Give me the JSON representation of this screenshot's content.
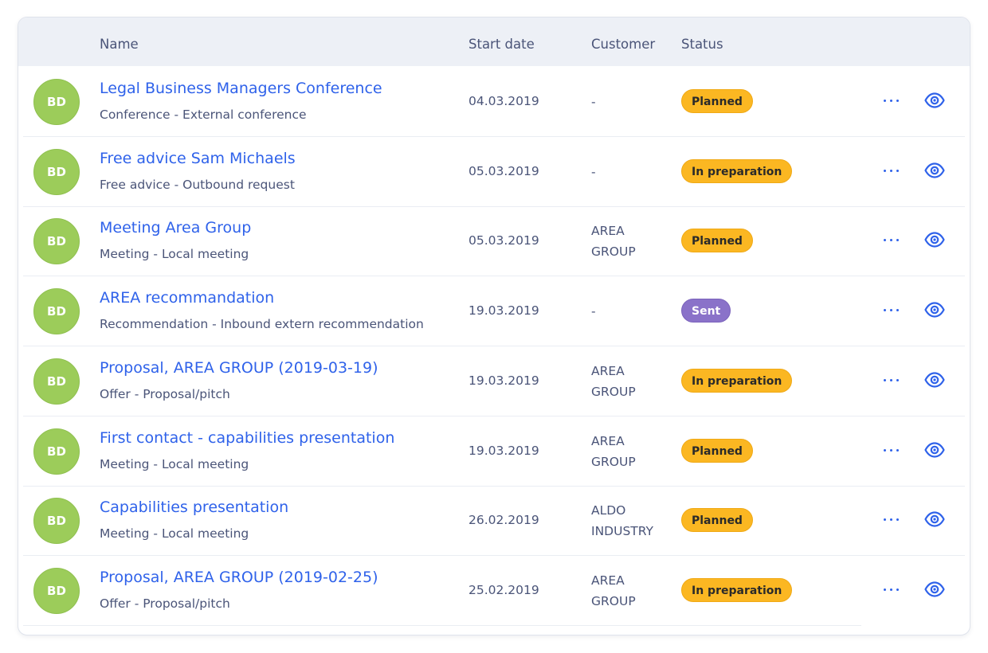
{
  "columns": {
    "name": "Name",
    "start_date": "Start date",
    "customer": "Customer",
    "status": "Status"
  },
  "colors": {
    "link": "#2f62ea",
    "avatar": "#9ccc5a",
    "planned": "#fbb722",
    "in_preparation": "#fbb722",
    "sent": "#8a72c9"
  },
  "icons": {
    "more": "more-dots-icon",
    "view": "eye-icon"
  },
  "rows": [
    {
      "avatar": "BD",
      "title": "Legal Business Managers Conference",
      "subtitle": "Conference - External conference",
      "date": "04.03.2019",
      "customer_line1": "-",
      "customer_line2": "",
      "status": "Planned"
    },
    {
      "avatar": "BD",
      "title": "Free advice Sam Michaels",
      "subtitle": "Free advice - Outbound request",
      "date": "05.03.2019",
      "customer_line1": "-",
      "customer_line2": "",
      "status": "In preparation"
    },
    {
      "avatar": "BD",
      "title": "Meeting Area Group",
      "subtitle": "Meeting - Local meeting",
      "date": "05.03.2019",
      "customer_line1": "AREA",
      "customer_line2": "GROUP",
      "status": "Planned"
    },
    {
      "avatar": "BD",
      "title": "AREA recommandation",
      "subtitle": "Recommendation - Inbound extern recommendation",
      "date": "19.03.2019",
      "customer_line1": "-",
      "customer_line2": "",
      "status": "Sent"
    },
    {
      "avatar": "BD",
      "title": "Proposal, AREA GROUP (2019-03-19)",
      "subtitle": "Offer - Proposal/pitch",
      "date": "19.03.2019",
      "customer_line1": "AREA",
      "customer_line2": "GROUP",
      "status": "In preparation"
    },
    {
      "avatar": "BD",
      "title": "First contact - capabilities presentation",
      "subtitle": "Meeting - Local meeting",
      "date": "19.03.2019",
      "customer_line1": "AREA",
      "customer_line2": "GROUP",
      "status": "Planned"
    },
    {
      "avatar": "BD",
      "title": "Capabilities presentation",
      "subtitle": "Meeting - Local meeting",
      "date": "26.02.2019",
      "customer_line1": "ALDO",
      "customer_line2": "INDUSTRY",
      "status": "Planned"
    },
    {
      "avatar": "BD",
      "title": "Proposal, AREA GROUP (2019-02-25)",
      "subtitle": "Offer - Proposal/pitch",
      "date": "25.02.2019",
      "customer_line1": "AREA",
      "customer_line2": "GROUP",
      "status": "In preparation"
    }
  ]
}
